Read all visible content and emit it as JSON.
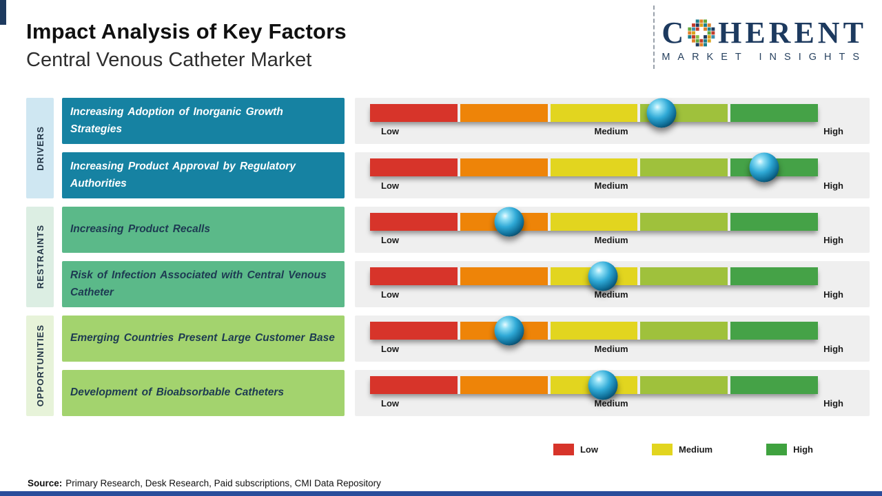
{
  "header": {
    "title": "Impact Analysis of Key Factors",
    "subtitle": "Central Venous Catheter Market"
  },
  "logo": {
    "wordmark_prefix": "C",
    "wordmark_suffix": "HERENT",
    "tagline": "MARKET INSIGHTS"
  },
  "categories": [
    {
      "label": "DRIVERS",
      "strip_color": "#cfe7f2"
    },
    {
      "label": "RESTRAINTS",
      "strip_color": "#dceee3"
    },
    {
      "label": "OPPORTUNITIES",
      "strip_color": "#e7f3d9"
    }
  ],
  "rows": [
    {
      "factor": "Increasing Adoption of Inorganic Growth Strategies",
      "marker_pct": 65,
      "box_color": "#1682a2"
    },
    {
      "factor": "Increasing Product Approval by Regulatory Authorities",
      "marker_pct": 88,
      "box_color": "#1682a2"
    },
    {
      "factor": "Increasing Product Recalls",
      "marker_pct": 31,
      "box_color": "#5bb989"
    },
    {
      "factor": "Risk of Infection Associated with Central Venous Catheter",
      "marker_pct": 52,
      "box_color": "#5bb989"
    },
    {
      "factor": "Emerging Countries Present Large Customer Base",
      "marker_pct": 31,
      "box_color": "#a3d36e"
    },
    {
      "factor": "Development of Bioabsorbable Catheters",
      "marker_pct": 52,
      "box_color": "#a3d36e"
    }
  ],
  "scale": {
    "low": "Low",
    "medium": "Medium",
    "high": "High"
  },
  "bar_colors": {
    "red": "#d7342a",
    "orange": "#ee8408",
    "yellow": "#e2d51f",
    "yellow_green": "#9fc13c",
    "green": "#45a247"
  },
  "legend": {
    "items": [
      {
        "label": "Low",
        "color": "#d7342a"
      },
      {
        "label": "Medium",
        "color": "#e2d51f"
      },
      {
        "label": "High",
        "color": "#3fa23f"
      }
    ]
  },
  "source": {
    "label": "Source:",
    "text": "Primary Research, Desk Research, Paid subscriptions, CMI Data Repository"
  },
  "accent": {
    "brand_navy": "#1d3a5f",
    "footer_bar": "#2a4d9b"
  },
  "chart_data": {
    "type": "bar",
    "title": "Impact Analysis of Key Factors",
    "subtitle": "Central Venous Catheter Market",
    "scale_labels": [
      "Low",
      "Medium",
      "High"
    ],
    "scale_range_pct": [
      0,
      100
    ],
    "legend": [
      "Low",
      "Medium",
      "High"
    ],
    "legend_position": "bottom-right",
    "groups": [
      {
        "category": "DRIVERS",
        "factors": [
          {
            "label": "Increasing Adoption of Inorganic Growth Strategies",
            "impact_pct": 65,
            "impact_level": "Medium-High"
          },
          {
            "label": "Increasing Product Approval by Regulatory Authorities",
            "impact_pct": 88,
            "impact_level": "High"
          }
        ]
      },
      {
        "category": "RESTRAINTS",
        "factors": [
          {
            "label": "Increasing Product Recalls",
            "impact_pct": 31,
            "impact_level": "Low-Medium"
          },
          {
            "label": "Risk of Infection Associated with Central Venous Catheter",
            "impact_pct": 52,
            "impact_level": "Medium"
          }
        ]
      },
      {
        "category": "OPPORTUNITIES",
        "factors": [
          {
            "label": "Emerging Countries Present Large Customer Base",
            "impact_pct": 31,
            "impact_level": "Low-Medium"
          },
          {
            "label": "Development of Bioabsorbable Catheters",
            "impact_pct": 52,
            "impact_level": "Medium"
          }
        ]
      }
    ],
    "source": "Primary Research, Desk Research, Paid subscriptions, CMI Data Repository"
  }
}
